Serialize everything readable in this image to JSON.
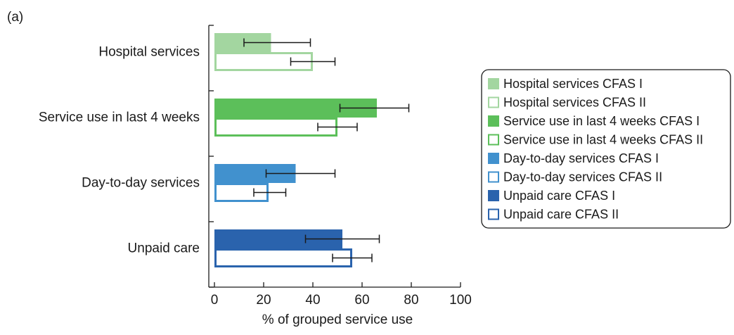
{
  "panel_label": "(a)",
  "chart_data": {
    "type": "bar",
    "orientation": "horizontal",
    "categories": [
      "Hospital services",
      "Service use in last 4 weeks",
      "Day-to-day services",
      "Unpaid care"
    ],
    "series": [
      {
        "name": "CFAS I",
        "style": "filled",
        "colors": [
          "#a3d6a0",
          "#5cbf5a",
          "#4191ce",
          "#2a63ad"
        ],
        "values": [
          23,
          66,
          33,
          52
        ],
        "error_low": [
          12,
          51,
          21,
          37
        ],
        "error_high": [
          39,
          79,
          49,
          67
        ]
      },
      {
        "name": "CFAS II",
        "style": "outline",
        "colors": [
          "#a3d6a0",
          "#5cbf5a",
          "#4191ce",
          "#2a63ad"
        ],
        "values": [
          40,
          50,
          22,
          56
        ],
        "error_low": [
          31,
          42,
          16,
          48
        ],
        "error_high": [
          49,
          58,
          29,
          64
        ]
      }
    ],
    "xlabel": "% of grouped service use",
    "ylabel": "",
    "xlim": [
      0,
      100
    ],
    "xticks": [
      0,
      20,
      40,
      60,
      80,
      100
    ],
    "grid": false,
    "legend": {
      "placement": "right",
      "entries": [
        {
          "label": "Hospital services CFAS I",
          "color": "#a3d6a0",
          "filled": true
        },
        {
          "label": "Hospital services CFAS II",
          "color": "#a3d6a0",
          "filled": false
        },
        {
          "label": "Service use in last 4 weeks CFAS I",
          "color": "#5cbf5a",
          "filled": true
        },
        {
          "label": "Service use in last 4 weeks CFAS II",
          "color": "#5cbf5a",
          "filled": false
        },
        {
          "label": "Day-to-day services CFAS I",
          "color": "#4191ce",
          "filled": true
        },
        {
          "label": "Day-to-day services CFAS II",
          "color": "#4191ce",
          "filled": false
        },
        {
          "label": "Unpaid care CFAS I",
          "color": "#2a63ad",
          "filled": true
        },
        {
          "label": "Unpaid care CFAS II",
          "color": "#2a63ad",
          "filled": false
        }
      ]
    }
  }
}
